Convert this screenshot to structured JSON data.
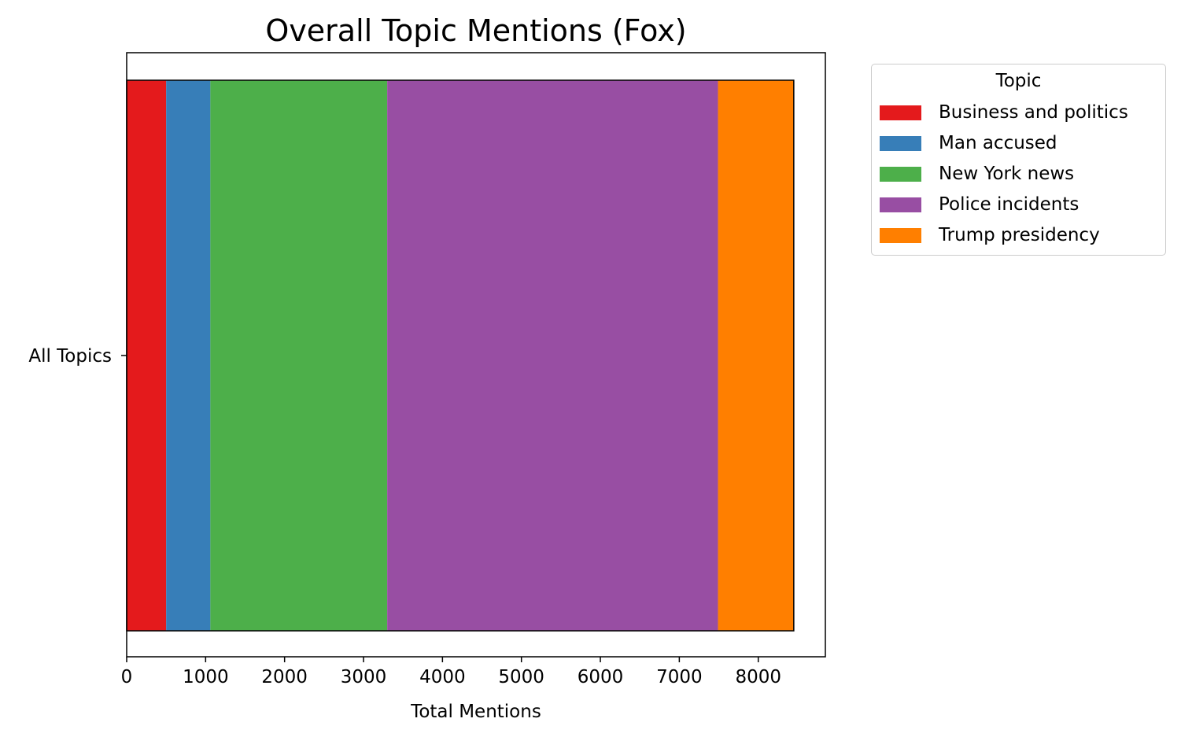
{
  "chart_data": {
    "type": "bar",
    "orientation": "horizontal",
    "stacked": true,
    "title": "Overall Topic Mentions (Fox)",
    "xlabel": "Total Mentions",
    "ylabel": "",
    "categories": [
      "All Topics"
    ],
    "xlim": [
      0,
      8850
    ],
    "xticks": [
      "0",
      "1000",
      "2000",
      "3000",
      "4000",
      "5000",
      "6000",
      "7000",
      "8000"
    ],
    "legend": {
      "title": "Topic",
      "placement": "outside-upper-right"
    },
    "grid": false,
    "series": [
      {
        "name": "Business and politics",
        "values": [
          500
        ],
        "color": "#e41a1c"
      },
      {
        "name": "Man accused",
        "values": [
          560
        ],
        "color": "#377eb8"
      },
      {
        "name": "New York news",
        "values": [
          2240
        ],
        "color": "#4daf4a"
      },
      {
        "name": "Police incidents",
        "values": [
          4190
        ],
        "color": "#984ea3"
      },
      {
        "name": "Trump presidency",
        "values": [
          960
        ],
        "color": "#ff7f00"
      }
    ]
  }
}
